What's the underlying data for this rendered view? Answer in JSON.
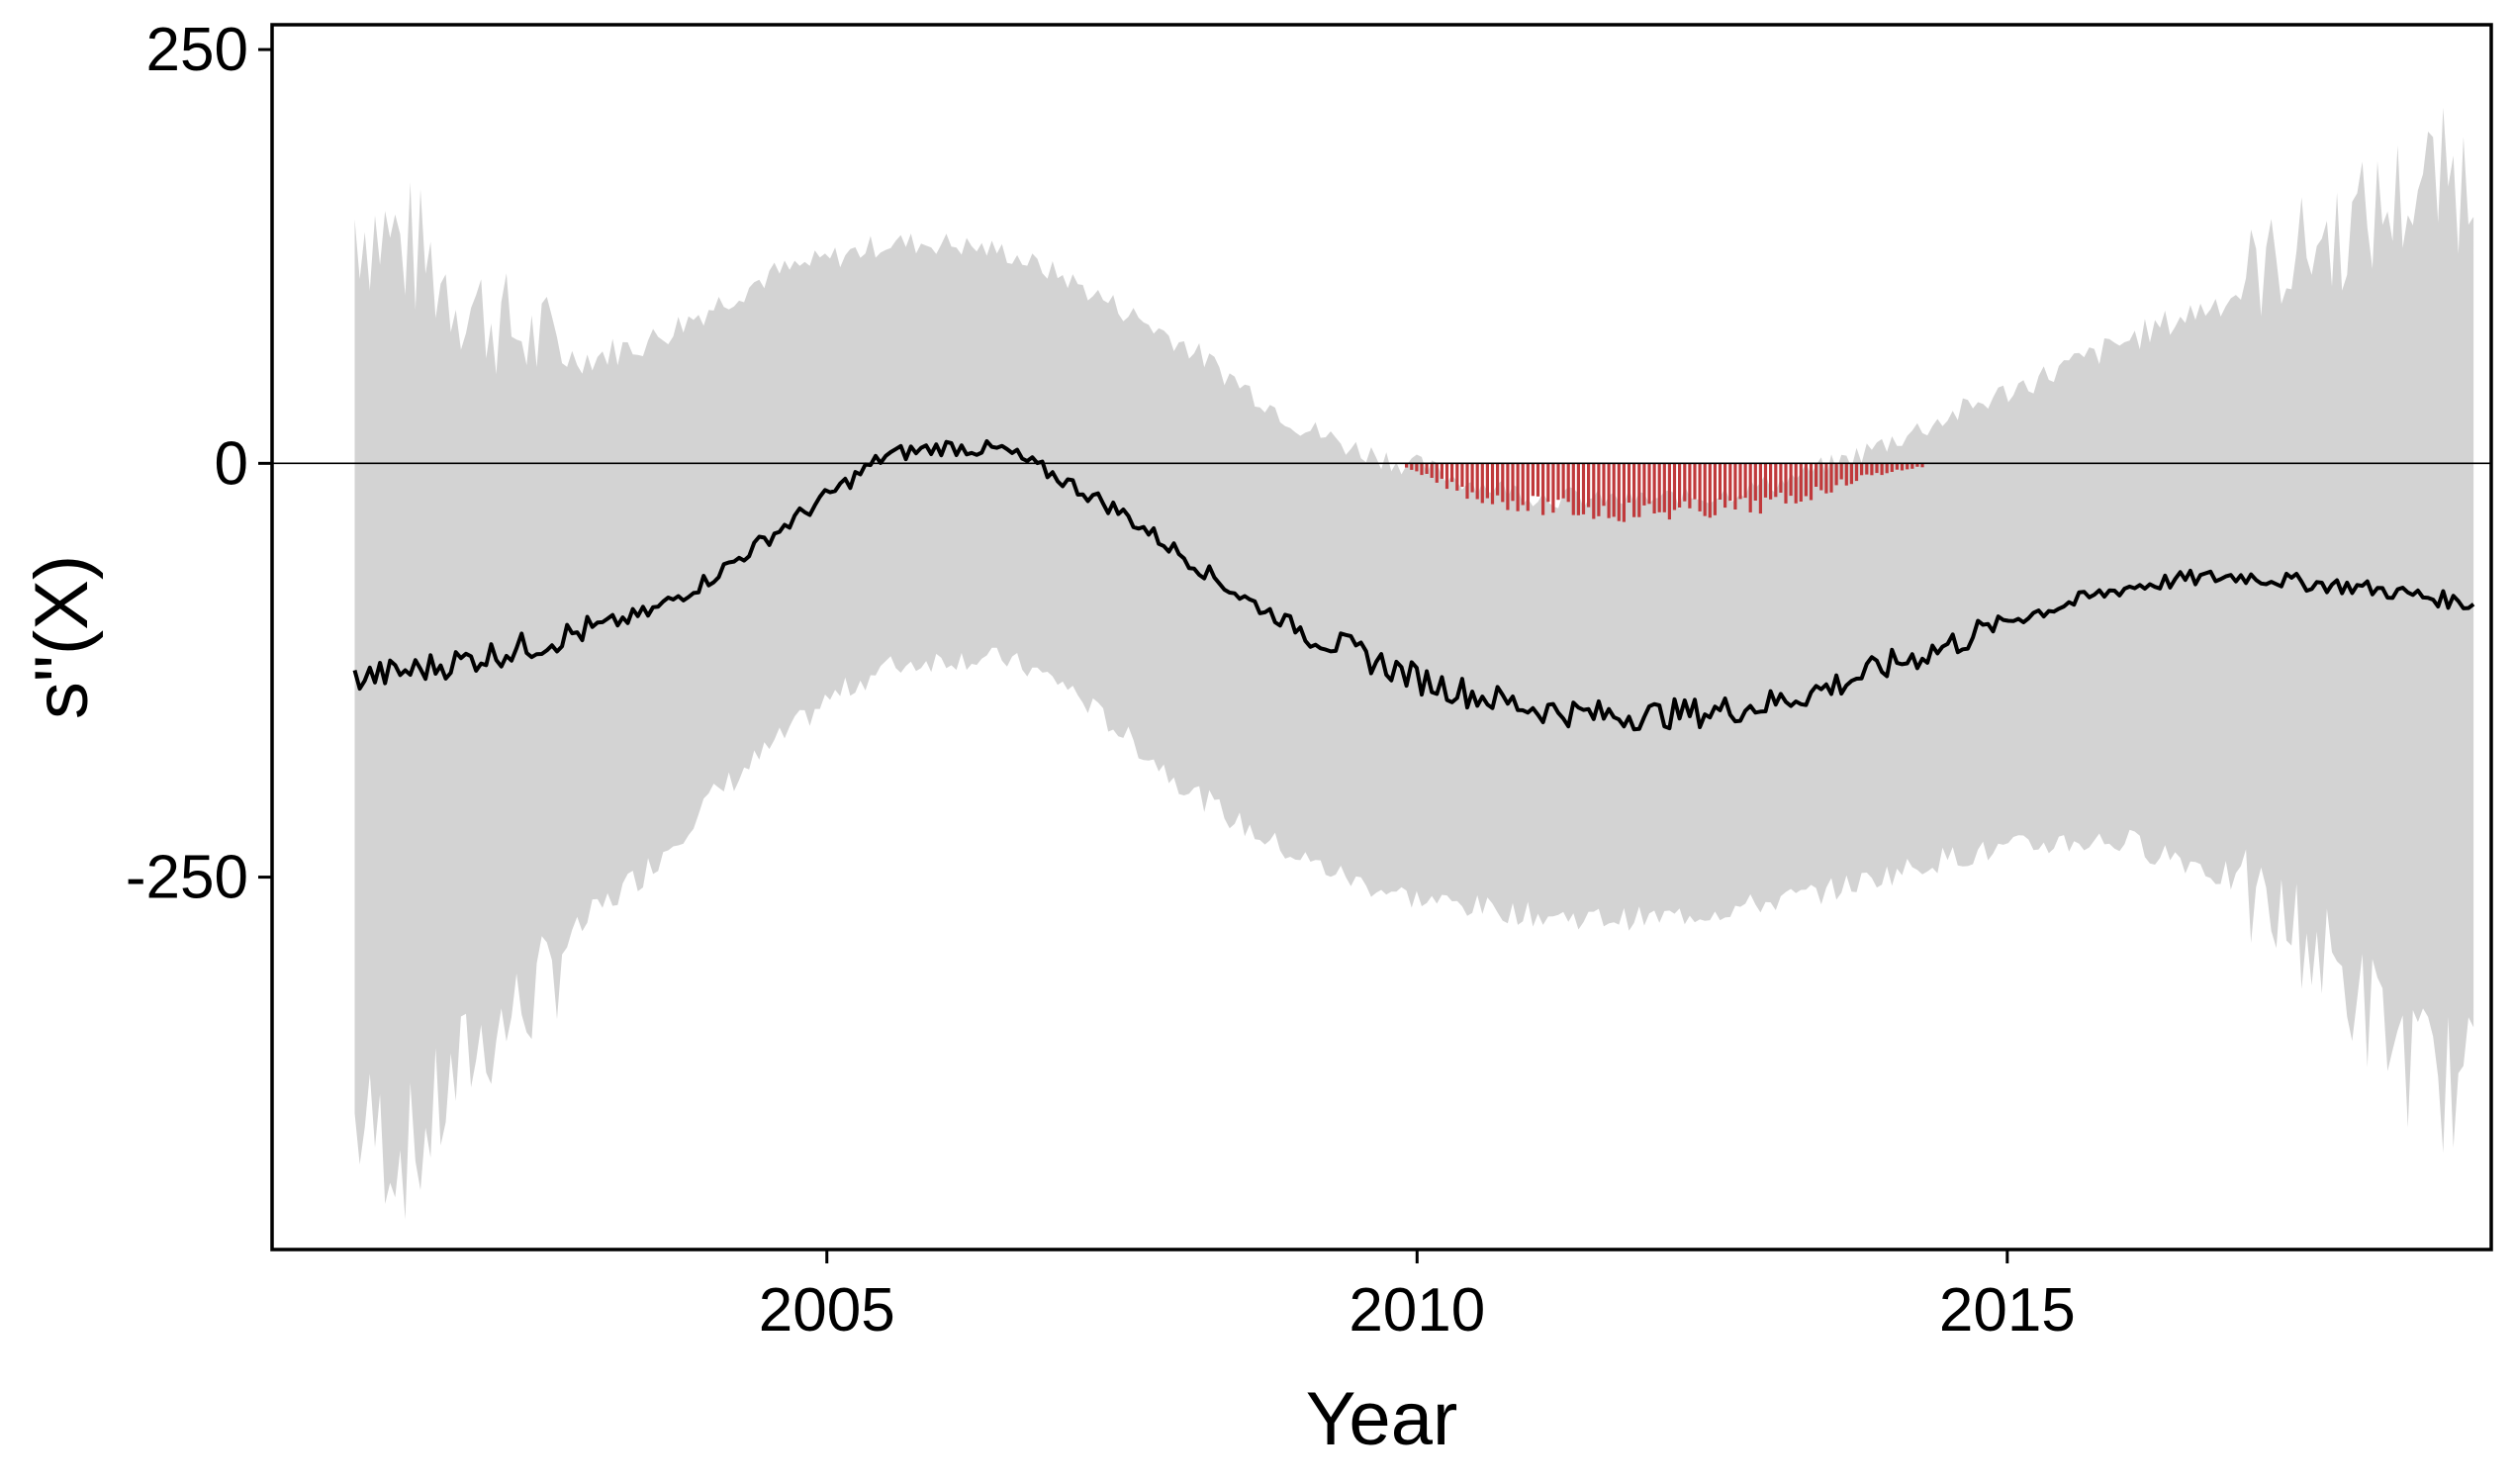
{
  "chart_data": {
    "type": "line",
    "title": "",
    "xlabel": "Year",
    "ylabel": "s\"(X)",
    "xlim": [
      2000.3,
      2019.1
    ],
    "ylim": [
      -475,
      265
    ],
    "x_ticks": [
      2005,
      2010,
      2015
    ],
    "x_tick_labels": [
      "2005",
      "2010",
      "2015"
    ],
    "y_ticks": [
      250,
      0,
      -250
    ],
    "y_tick_labels": [
      "250",
      "0",
      "-250"
    ],
    "grid": false,
    "legend": "none",
    "reference_line": 0,
    "series": [
      {
        "kind": "line",
        "x": [
          2001.0,
          2001.5,
          2002.0,
          2002.5,
          2003.0,
          2003.5,
          2004.0,
          2004.5,
          2005.0,
          2005.5,
          2006.0,
          2006.5,
          2007.0,
          2007.5,
          2008.0,
          2008.5,
          2009.0,
          2009.5,
          2010.0,
          2010.5,
          2011.0,
          2011.5,
          2012.0,
          2012.5,
          2013.0,
          2013.5,
          2014.0,
          2014.5,
          2015.0,
          2015.5,
          2016.0,
          2016.5,
          2017.0,
          2017.5,
          2018.0,
          2018.5,
          2018.95
        ],
        "values": [
          -130,
          -125,
          -118,
          -110,
          -100,
          -90,
          -70,
          -45,
          -20,
          5,
          10,
          8,
          -10,
          -30,
          -55,
          -80,
          -100,
          -115,
          -130,
          -140,
          -148,
          -152,
          -152,
          -150,
          -145,
          -135,
          -122,
          -110,
          -95,
          -85,
          -75,
          -70,
          -68,
          -72,
          -75,
          -80,
          -85
        ]
      },
      {
        "kind": "band",
        "x": [
          2001.0,
          2001.5,
          2002.0,
          2002.5,
          2003.0,
          2003.5,
          2004.0,
          2004.5,
          2005.0,
          2005.5,
          2006.0,
          2006.5,
          2007.0,
          2007.5,
          2008.0,
          2008.5,
          2009.0,
          2009.5,
          2010.0,
          2010.5,
          2011.0,
          2011.5,
          2012.0,
          2012.5,
          2013.0,
          2013.5,
          2014.0,
          2014.5,
          2015.0,
          2015.5,
          2016.0,
          2016.5,
          2017.0,
          2017.5,
          2018.0,
          2018.5,
          2018.95
        ],
        "upper": [
          130,
          110,
          80,
          60,
          60,
          70,
          90,
          110,
          120,
          130,
          130,
          125,
          110,
          90,
          70,
          45,
          20,
          5,
          -5,
          -15,
          -22,
          -25,
          -25,
          -22,
          -15,
          -5,
          10,
          25,
          40,
          55,
          70,
          85,
          100,
          115,
          130,
          150,
          155
        ],
        "lower": [
          -380,
          -400,
          -340,
          -310,
          -270,
          -240,
          -200,
          -170,
          -140,
          -120,
          -115,
          -115,
          -130,
          -160,
          -190,
          -215,
          -235,
          -250,
          -260,
          -265,
          -270,
          -272,
          -272,
          -268,
          -262,
          -255,
          -245,
          -235,
          -230,
          -225,
          -225,
          -235,
          -250,
          -270,
          -310,
          -350,
          -360
        ]
      },
      {
        "kind": "bars",
        "note_color": "#c0393b",
        "x": [
          2009.9,
          2010.2,
          2010.5,
          2010.8,
          2011.1,
          2011.4,
          2011.7,
          2012.0,
          2012.3,
          2012.6,
          2012.9,
          2013.2,
          2013.5,
          2013.8,
          2014.1,
          2014.3
        ],
        "values": [
          -3,
          -12,
          -20,
          -24,
          -27,
          -29,
          -30,
          -30,
          -29,
          -28,
          -26,
          -22,
          -15,
          -8,
          -4,
          -2
        ]
      }
    ],
    "colors": {
      "band": "#d3d3d3",
      "line": "#000000",
      "bars": "#c0393b",
      "frame": "#000000"
    }
  }
}
